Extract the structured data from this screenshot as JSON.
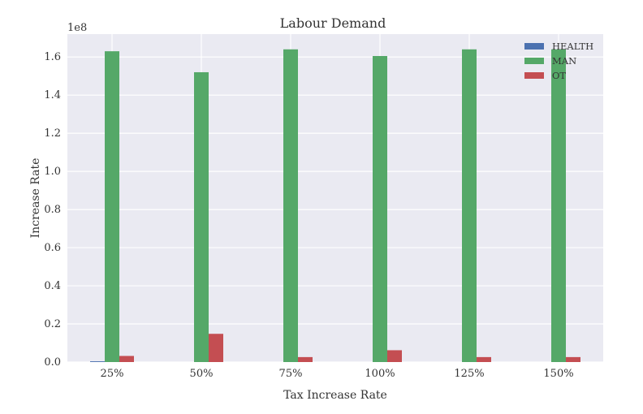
{
  "chart_data": {
    "type": "bar",
    "title": "Labour Demand",
    "xlabel": "Tax Increase Rate",
    "ylabel": "Increase Rate",
    "y_offset_label": "1e8",
    "categories": [
      "25%",
      "50%",
      "75%",
      "100%",
      "125%",
      "150%"
    ],
    "ylim": [
      0,
      1.72
    ],
    "yticks": [
      "0.0",
      "0.2",
      "0.4",
      "0.6",
      "0.8",
      "1.0",
      "1.2",
      "1.4",
      "1.6"
    ],
    "grid": true,
    "legend_position": "top-right",
    "series": [
      {
        "name": "HEALTH",
        "color": "#4c72b0",
        "values": [
          0.004,
          0.0,
          0.0,
          0.0,
          0.0,
          0.0
        ]
      },
      {
        "name": "MAN",
        "color": "#55a868",
        "values": [
          1.63,
          1.52,
          1.64,
          1.605,
          1.64,
          1.64
        ]
      },
      {
        "name": "OT",
        "color": "#c44e52",
        "values": [
          0.032,
          0.148,
          0.026,
          0.062,
          0.026,
          0.026
        ]
      }
    ]
  }
}
